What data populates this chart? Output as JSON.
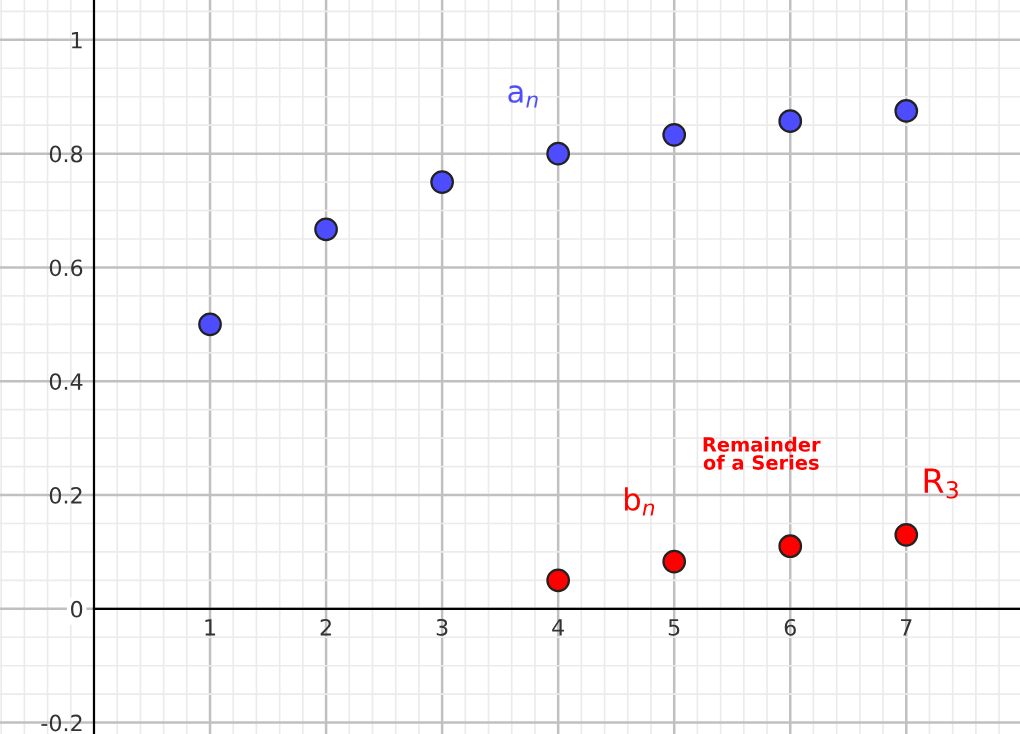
{
  "chart_data": {
    "type": "scatter",
    "marker": "circle",
    "grid": true,
    "legend": false,
    "xlim": [
      -0.81,
      7.98
    ],
    "ylim": [
      -0.22,
      1.07
    ],
    "xticks": [
      1,
      2,
      3,
      4,
      5,
      6,
      7
    ],
    "yticks": [
      -0.2,
      0,
      0.2,
      0.4,
      0.6,
      0.8,
      1
    ],
    "series": [
      {
        "name": "a$_{n}$",
        "color": "#4d4dff",
        "x": [
          1,
          2,
          3,
          4,
          5,
          6,
          7
        ],
        "values": [
          0.5,
          0.667,
          0.75,
          0.8,
          0.833,
          0.857,
          0.875
        ]
      },
      {
        "name": "b$_{n}$",
        "color": "#ff0000",
        "x": [
          4,
          5,
          6,
          7
        ],
        "values": [
          0.05,
          0.083,
          0.11,
          0.13
        ]
      }
    ],
    "annotations": [
      "Remainder\nof a Series",
      "R$_{3}$"
    ]
  }
}
